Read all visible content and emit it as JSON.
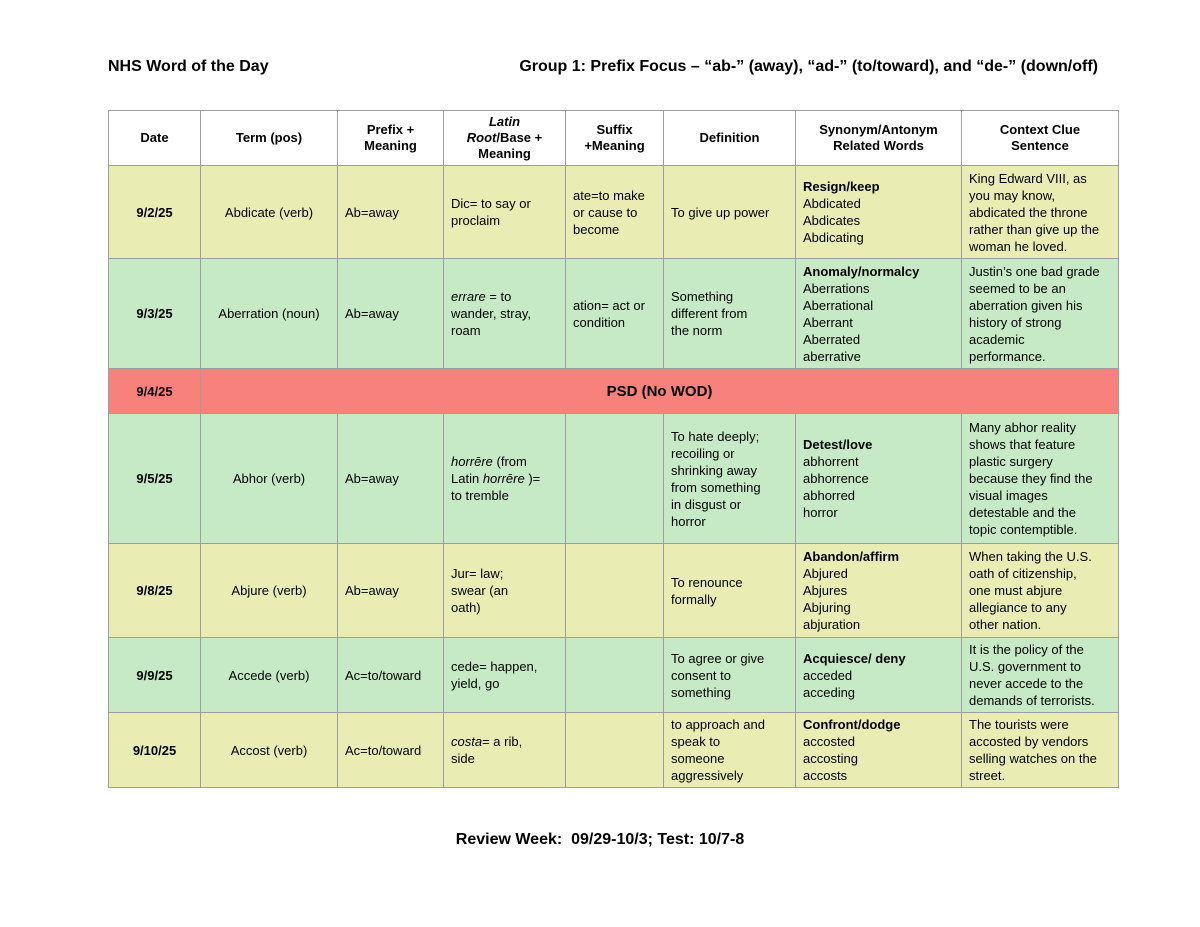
{
  "page": {
    "title_left": "NHS Word of the Day",
    "title_right": "Group 1: Prefix Focus – “ab-” (away), “ad-” (to/toward), and “de-” (down/off)",
    "footer": "Review Week:  09/29-10/3; Test: 10/7-8"
  },
  "colors": {
    "yellow": "#EAEDB3",
    "green": "#C6EAC6",
    "red": "#F8817B",
    "white": "#FFFFFF",
    "border": "#9E9E9E"
  },
  "table": {
    "headers": {
      "date": "Date",
      "term": "Term (pos)",
      "prefix": "Prefix +\nMeaning",
      "latin": [
        {
          "t": "Latin",
          "i": true
        },
        {
          "t": "\n"
        },
        {
          "t": "Root",
          "i": true
        },
        {
          "t": "/Base +\nMeaning"
        }
      ],
      "suffix": "Suffix\n+Meaning",
      "definition": "Definition",
      "synonyms": "Synonym/Antonym\nRelated Words",
      "context": "Context Clue\nSentence"
    },
    "rows": [
      {
        "bg": "yellow",
        "date": "9/2/25",
        "term": "Abdicate (verb)",
        "prefix": "Ab=away",
        "latin": [
          {
            "t": "Dic= to say or\nproclaim"
          }
        ],
        "suffix": "ate=to make\nor cause to\nbecome",
        "definition": "To give up power",
        "synonyms": [
          {
            "t": "Resign/keep",
            "b": true
          },
          {
            "t": "\nAbdicated\nAbdicates\nAbdicating"
          }
        ],
        "context": "King Edward VIII, as\nyou may know,\nabdicated the throne\nrather than give up the\nwoman he loved."
      },
      {
        "bg": "green",
        "date": "9/3/25",
        "term": "Aberration (noun)",
        "prefix": "Ab=away",
        "latin": [
          {
            "t": "errare",
            "i": true
          },
          {
            "t": " = to\nwander, stray,\nroam"
          }
        ],
        "suffix": "ation= act or\ncondition",
        "definition": "Something\ndifferent from\nthe norm",
        "synonyms": [
          {
            "t": "Anomaly/normalcy",
            "b": true
          },
          {
            "t": "\nAberrations\nAberrational\nAberrant\nAberrated\naberrative"
          }
        ],
        "context": "Justin’s one bad grade\nseemed to be an\naberration given his\nhistory of strong\nacademic\nperformance."
      },
      {
        "bg": "red",
        "date": "9/4/25",
        "notice": "PSD (No WOD)"
      },
      {
        "bg": "green",
        "date": "9/5/25",
        "term": "Abhor (verb)",
        "prefix": "Ab=away",
        "latin": [
          {
            "t": "horrēre",
            "i": true
          },
          {
            "t": " (from\nLatin "
          },
          {
            "t": "horrēre",
            "i": true
          },
          {
            "t": " )=\nto tremble"
          }
        ],
        "suffix": "",
        "definition": "To hate deeply;\nrecoiling or\nshrinking away\nfrom something\nin disgust or\nhorror",
        "synonyms": [
          {
            "t": "Detest/love",
            "b": true
          },
          {
            "t": "\nabhorrent\nabhorrence\nabhorred\nhorror"
          }
        ],
        "context": "Many abhor reality\nshows that feature\nplastic surgery\nbecause they find the\nvisual images\ndetestable and the\ntopic contemptible."
      },
      {
        "bg": "yellow",
        "date": "9/8/25",
        "term": "Abjure (verb)",
        "prefix": "Ab=away",
        "latin": [
          {
            "t": "Jur= law;\nswear (an\noath)"
          }
        ],
        "suffix": "",
        "definition": "To renounce\nformally",
        "synonyms": [
          {
            "t": "Abandon/affirm",
            "b": true
          },
          {
            "t": "\nAbjured\nAbjures\nAbjuring\nabjuration"
          }
        ],
        "context": "When taking the U.S.\noath of citizenship,\none must abjure\nallegiance to any\nother nation."
      },
      {
        "bg": "green",
        "date": "9/9/25",
        "term": "Accede (verb)",
        "prefix": "Ac=to/toward",
        "latin": [
          {
            "t": "cede= happen,\nyield, go"
          }
        ],
        "suffix": "",
        "definition": "To agree or give\nconsent to\nsomething",
        "synonyms": [
          {
            "t": "Acquiesce/ deny",
            "b": true
          },
          {
            "t": "\nacceded\nacceding"
          }
        ],
        "context": "It is the policy of the\nU.S. government to\nnever accede to the\ndemands of terrorists."
      },
      {
        "bg": "yellow",
        "date": "9/10/25",
        "term": "Accost (verb)",
        "prefix": "Ac=to/toward",
        "latin": [
          {
            "t": "costa",
            "i": true
          },
          {
            "t": "= a rib,\nside"
          }
        ],
        "suffix": "",
        "definition": "to approach and\nspeak to\nsomeone\naggressively",
        "synonyms": [
          {
            "t": "Confront/dodge",
            "b": true
          },
          {
            "t": "\naccosted\naccosting\naccosts"
          }
        ],
        "context": "The tourists were\naccosted by vendors\nselling watches on the\nstreet."
      }
    ]
  }
}
